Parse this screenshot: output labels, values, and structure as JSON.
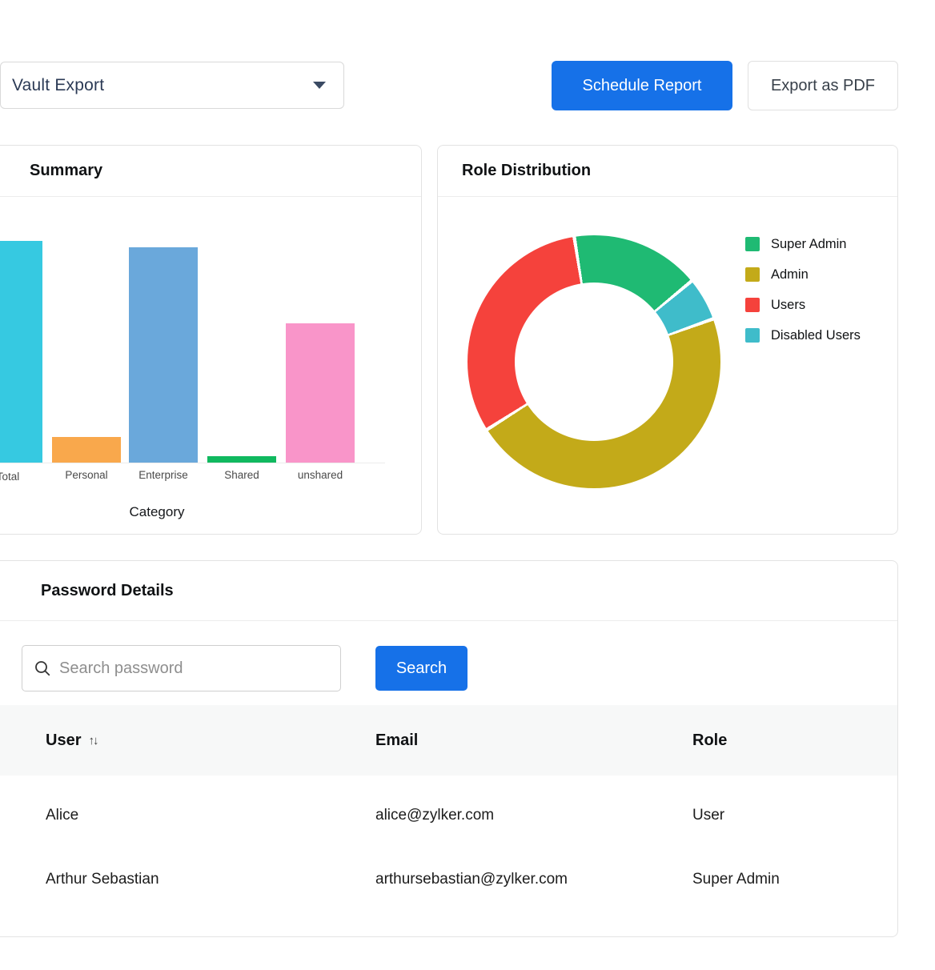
{
  "header": {
    "report_selector_value": "Vault Export",
    "schedule_button_label": "Schedule Report",
    "export_button_label": "Export as PDF"
  },
  "cards": {
    "summary": {
      "title": "Summary"
    },
    "roles": {
      "title": "Role Distribution"
    }
  },
  "chart_data": [
    {
      "type": "bar",
      "title": "Summary",
      "categories": [
        "Total",
        "Personal",
        "Enterprise",
        "Shared",
        "unshared"
      ],
      "values": [
        70,
        8,
        68,
        2,
        44
      ],
      "bar_colors": [
        "#36c9e1",
        "#f9a84c",
        "#6aa8db",
        "#10b95f",
        "#f995c9"
      ],
      "xlabel": "Category",
      "ylabel": "",
      "ylim": [
        0,
        75
      ],
      "grid": false,
      "note": "y-axis is cropped off the left edge of the screenshot; first bar and its tick label 'Total' are partially cut (label wraps as 'Tota l')"
    },
    {
      "type": "pie",
      "variant": "donut",
      "title": "Role Distribution",
      "labels": [
        "Super Admin",
        "Admin",
        "Users",
        "Disabled Users"
      ],
      "values_percent": [
        16.5,
        46.5,
        31.5,
        5.5
      ],
      "colors": [
        "#1fba73",
        "#c3aa19",
        "#f5423c",
        "#3fbcca"
      ],
      "legend_position": "right",
      "start_angle_deg": -9,
      "slices_clockwise_from_top": [
        {
          "label": "Super Admin",
          "percent": 16.5,
          "color": "#1fba73"
        },
        {
          "label": "Disabled Users",
          "percent": 5.5,
          "color": "#3fbcca"
        },
        {
          "label": "Admin",
          "percent": 46.5,
          "color": "#c3aa19"
        },
        {
          "label": "Users",
          "percent": 31.5,
          "color": "#f5423c"
        }
      ]
    }
  ],
  "password_details": {
    "title": "Password Details",
    "search": {
      "placeholder": "Search password",
      "button_label": "Search"
    },
    "table": {
      "columns": [
        {
          "label": "User",
          "sortable": true,
          "sort_glyph": "↑↓"
        },
        {
          "label": "Email",
          "sortable": false
        },
        {
          "label": "Role",
          "sortable": false
        }
      ],
      "rows": [
        {
          "user": "Alice",
          "email": "alice@zylker.com",
          "role": "User"
        },
        {
          "user": "Arthur Sebastian",
          "email": "arthursebastian@zylker.com",
          "role": "Super Admin"
        }
      ]
    }
  },
  "colors": {
    "primary_blue": "#1671e8",
    "card_border": "#e3e3e3",
    "table_header_bg": "#f7f8f8",
    "placeholder_gray": "#8e8e8e",
    "dropdown_text": "#2b3a55"
  }
}
